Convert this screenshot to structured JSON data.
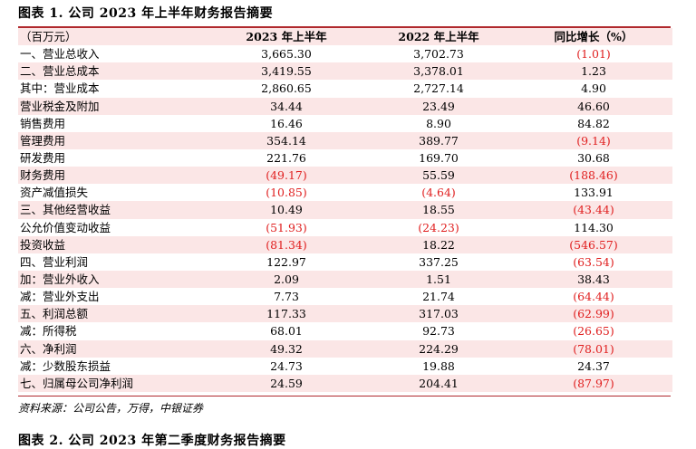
{
  "title": "图表 1. 公司 2023 年上半年财务报告摘要",
  "header": [
    "（百万元）",
    "2023 年上半年",
    "2022 年上半年",
    "同比增长（%）"
  ],
  "rows": [
    [
      "一、营业总收入",
      "3,665.30",
      "3,702.73",
      "(1.01)"
    ],
    [
      "二、营业总成本",
      "3,419.55",
      "3,378.01",
      "1.23"
    ],
    [
      "其中：营业成本",
      "2,860.65",
      "2,727.14",
      "4.90"
    ],
    [
      "营业税金及附加",
      "34.44",
      "23.49",
      "46.60"
    ],
    [
      "销售费用",
      "16.46",
      "8.90",
      "84.82"
    ],
    [
      "管理费用",
      "354.14",
      "389.77",
      "(9.14)"
    ],
    [
      "研发费用",
      "221.76",
      "169.70",
      "30.68"
    ],
    [
      "财务费用",
      "(49.17)",
      "55.59",
      "(188.46)"
    ],
    [
      "资产减值损失",
      "(10.85)",
      "(4.64)",
      "133.91"
    ],
    [
      "三、其他经营收益",
      "10.49",
      "18.55",
      "(43.44)"
    ],
    [
      "公允价值变动收益",
      "(51.93)",
      "(24.23)",
      "114.30"
    ],
    [
      "投资收益",
      "(81.34)",
      "18.22",
      "(546.57)"
    ],
    [
      "四、营业利润",
      "122.97",
      "337.25",
      "(63.54)"
    ],
    [
      "加：营业外收入",
      "2.09",
      "1.51",
      "38.43"
    ],
    [
      "减：营业外支出",
      "7.73",
      "21.74",
      "(64.44)"
    ],
    [
      "五、利润总额",
      "117.33",
      "317.03",
      "(62.99)"
    ],
    [
      "减：所得税",
      "68.01",
      "92.73",
      "(26.65)"
    ],
    [
      "六、净利润",
      "49.32",
      "224.29",
      "(78.01)"
    ],
    [
      "减：少数股东损益",
      "24.73",
      "19.88",
      "24.37"
    ],
    [
      "七、归属母公司净利润",
      "24.59",
      "204.41",
      "(87.97)"
    ]
  ],
  "source": "资料来源：公司公告，万得，中银证券",
  "next_title": "图表 2. 公司 2023 年第二季度财务报告摘要",
  "colors": {
    "rule": "#b0282d",
    "shade": "#fbe6e6",
    "negative": "#e02020"
  }
}
